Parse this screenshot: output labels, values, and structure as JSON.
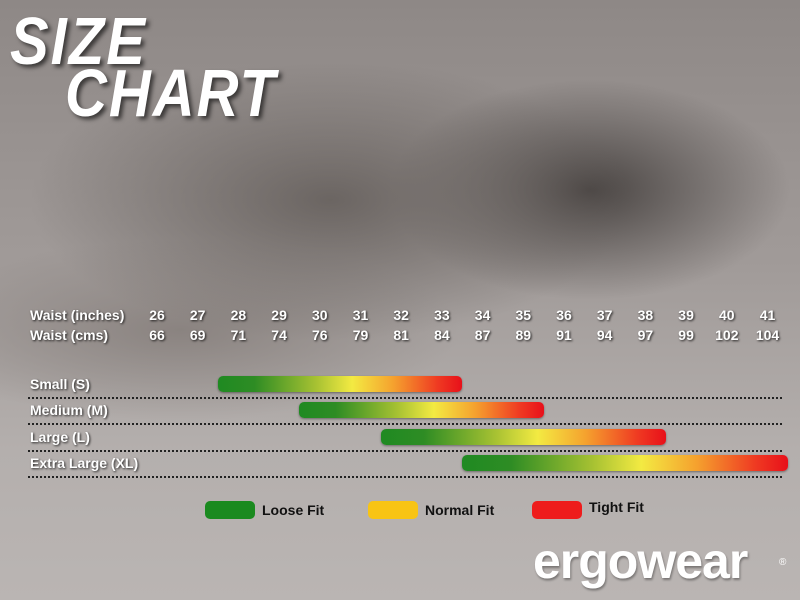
{
  "title": {
    "line1": "SIZE",
    "line2": "CHART"
  },
  "chart_data": {
    "type": "range-bar",
    "header_rows": [
      {
        "label": "Waist (inches)",
        "values": [
          "26",
          "27",
          "28",
          "29",
          "30",
          "31",
          "32",
          "33",
          "34",
          "35",
          "36",
          "37",
          "38",
          "39",
          "40",
          "41"
        ]
      },
      {
        "label": "Waist (cms)",
        "values": [
          "66",
          "69",
          "71",
          "74",
          "76",
          "79",
          "81",
          "84",
          "87",
          "89",
          "91",
          "94",
          "97",
          "99",
          "102",
          "104"
        ]
      }
    ],
    "x_unit": "waist inches",
    "series": [
      {
        "name": "Small (S)",
        "min": 28,
        "max": 33
      },
      {
        "name": "Medium (M)",
        "min": 30,
        "max": 35
      },
      {
        "name": "Large (L)",
        "min": 32,
        "max": 38
      },
      {
        "name": "Extra Large (XL)",
        "min": 34,
        "max": 41
      }
    ],
    "gradient": [
      "#1f8a22",
      "#f3ea42",
      "#e8101a"
    ],
    "legend": [
      {
        "label": "Loose Fit",
        "color": "#1a8a1f"
      },
      {
        "label": "Normal Fit",
        "color": "#f8c414"
      },
      {
        "label": "Tight Fit",
        "color": "#ee1c1c"
      }
    ]
  },
  "brand": {
    "logo": "ergowear",
    "registered": "®"
  }
}
